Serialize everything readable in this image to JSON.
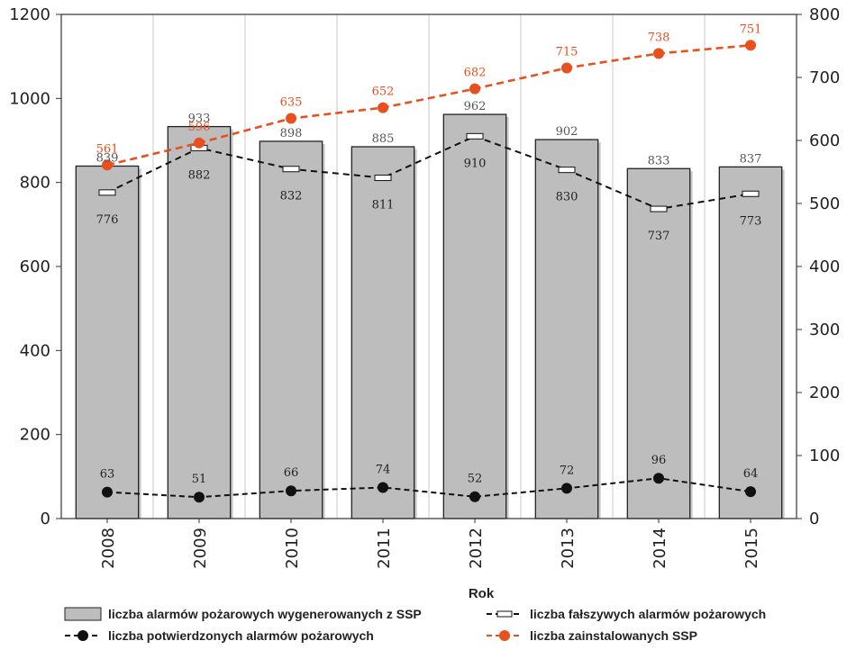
{
  "chart_data": {
    "type": "bar",
    "categories": [
      "2008",
      "2009",
      "2010",
      "2011",
      "2012",
      "2013",
      "2014",
      "2015"
    ],
    "xlabel": "Rok",
    "ylim_left": [
      0,
      1200
    ],
    "yticks_left": [
      0,
      200,
      400,
      600,
      800,
      1000,
      1200
    ],
    "ylim_right": [
      0,
      800
    ],
    "yticks_right": [
      0,
      100,
      200,
      300,
      400,
      500,
      600,
      700,
      800
    ],
    "grid": "vertical",
    "legend_position": "bottom",
    "series": [
      {
        "name": "liczba alarmów pożarowych wygenerowanych z SSP",
        "type": "bar",
        "axis": "left",
        "color": "#bdbdbd",
        "values": [
          839,
          933,
          898,
          885,
          962,
          902,
          833,
          837
        ]
      },
      {
        "name": "liczba fałszywych alarmów pożarowych",
        "type": "line",
        "axis": "left",
        "color": "#111111",
        "values": [
          776,
          882,
          832,
          811,
          910,
          830,
          737,
          773
        ]
      },
      {
        "name": "liczba potwierdzonych alarmów pożarowych",
        "type": "line",
        "axis": "left",
        "color": "#111111",
        "values": [
          63,
          51,
          66,
          74,
          52,
          72,
          96,
          64
        ]
      },
      {
        "name": "liczba zainstalowanych SSP",
        "type": "line",
        "axis": "right",
        "color": "#e8501e",
        "values": [
          561,
          596,
          635,
          652,
          682,
          715,
          738,
          751
        ]
      }
    ]
  }
}
